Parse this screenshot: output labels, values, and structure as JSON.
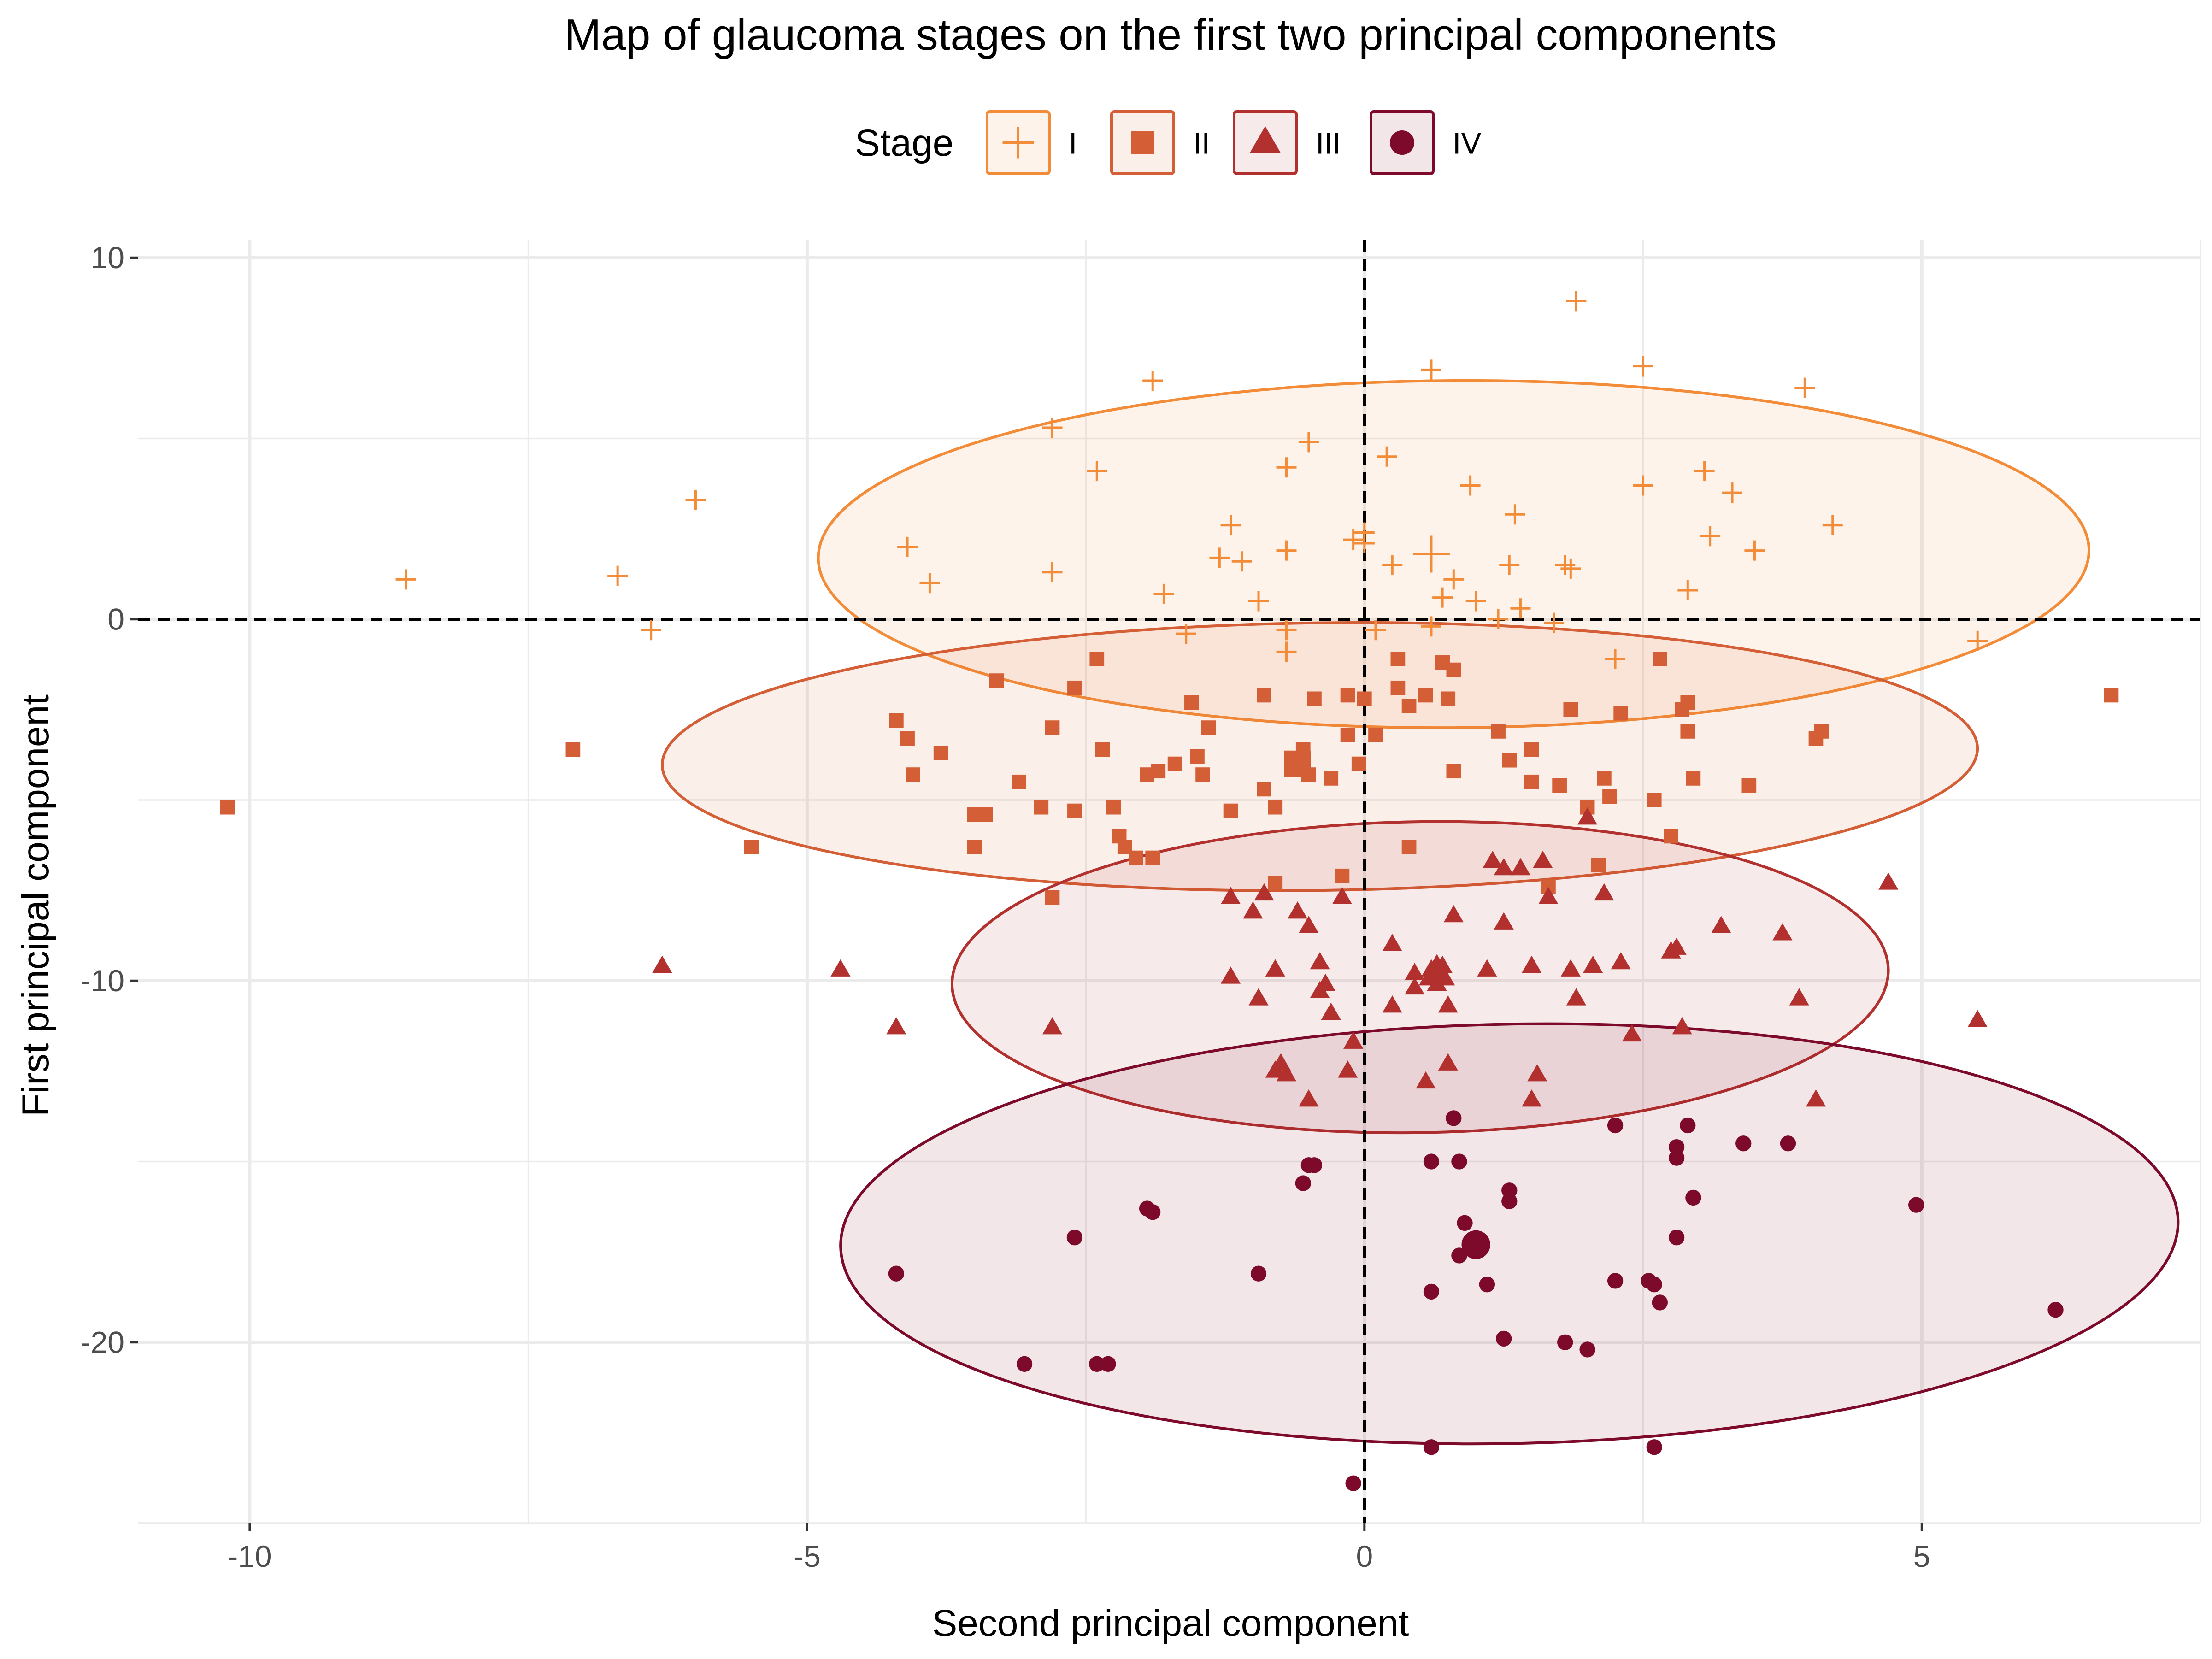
{
  "chart_data": {
    "type": "scatter",
    "title": "Map of glaucoma stages on the first two principal components",
    "xlabel": "Second principal component",
    "ylabel": "First principal component",
    "xlim": [
      -11,
      7.5
    ],
    "ylim": [
      -25,
      10.5
    ],
    "xticks": [
      -10,
      -5,
      0,
      5
    ],
    "yticks": [
      -20,
      -10,
      0,
      10
    ],
    "grid": true,
    "reference_lines": {
      "x": 0,
      "y": 0,
      "style": "dashed"
    },
    "legend": {
      "title": "Stage",
      "position": "top"
    },
    "series": [
      {
        "name": "I",
        "color": "#F28C38",
        "fill": "#FDEDE0",
        "shape": "cross",
        "centroid": [
          0.6,
          1.8
        ],
        "ellipse": {
          "cx": 0.8,
          "cy": 1.8,
          "rx": 5.7,
          "ry": 4.8,
          "rotation": 0.02
        },
        "points": [
          [
            -8.6,
            1.1
          ],
          [
            -6.7,
            1.2
          ],
          [
            -6.4,
            -0.3
          ],
          [
            -6.0,
            3.3
          ],
          [
            -4.1,
            2.0
          ],
          [
            -3.9,
            1.0
          ],
          [
            -2.8,
            5.3
          ],
          [
            -2.8,
            1.3
          ],
          [
            -2.4,
            4.1
          ],
          [
            -1.9,
            6.6
          ],
          [
            -1.8,
            0.7
          ],
          [
            -1.6,
            -0.4
          ],
          [
            -1.2,
            2.6
          ],
          [
            -1.3,
            1.7
          ],
          [
            -1.1,
            1.6
          ],
          [
            -0.95,
            0.5
          ],
          [
            -0.7,
            4.2
          ],
          [
            -0.7,
            1.9
          ],
          [
            -0.7,
            -0.3
          ],
          [
            -0.7,
            -0.9
          ],
          [
            -0.5,
            4.9
          ],
          [
            -0.1,
            2.2
          ],
          [
            0.0,
            2.4
          ],
          [
            0.0,
            2.1
          ],
          [
            0.1,
            -0.3
          ],
          [
            0.2,
            4.5
          ],
          [
            0.25,
            1.5
          ],
          [
            0.6,
            -0.2
          ],
          [
            0.6,
            6.9
          ],
          [
            0.7,
            0.6
          ],
          [
            0.8,
            1.1
          ],
          [
            0.95,
            3.7
          ],
          [
            1.0,
            0.5
          ],
          [
            1.2,
            0.0
          ],
          [
            1.3,
            1.5
          ],
          [
            1.35,
            2.9
          ],
          [
            1.4,
            0.3
          ],
          [
            1.7,
            -0.1
          ],
          [
            1.8,
            1.5
          ],
          [
            1.85,
            1.4
          ],
          [
            1.9,
            8.8
          ],
          [
            2.25,
            -1.1
          ],
          [
            2.5,
            3.7
          ],
          [
            2.5,
            7.0
          ],
          [
            2.9,
            0.8
          ],
          [
            3.05,
            4.1
          ],
          [
            3.1,
            2.3
          ],
          [
            3.3,
            3.5
          ],
          [
            3.5,
            1.9
          ],
          [
            3.95,
            6.4
          ],
          [
            4.2,
            2.6
          ],
          [
            5.5,
            -0.6
          ]
        ]
      },
      {
        "name": "II",
        "color": "#D45E35",
        "fill": "#F7E5DE",
        "shape": "square",
        "centroid": [
          -0.6,
          -4.0
        ],
        "ellipse": {
          "cx": -0.4,
          "cy": -3.8,
          "rx": 5.9,
          "ry": 3.7,
          "rotation": 0.04
        },
        "points": [
          [
            -10.2,
            -5.2
          ],
          [
            -7.1,
            -3.6
          ],
          [
            -5.5,
            -6.3
          ],
          [
            -4.2,
            -2.8
          ],
          [
            -4.1,
            -3.3
          ],
          [
            -4.05,
            -4.3
          ],
          [
            -3.8,
            -3.7
          ],
          [
            -3.5,
            -5.4
          ],
          [
            -3.5,
            -6.3
          ],
          [
            -3.4,
            -5.4
          ],
          [
            -3.3,
            -1.7
          ],
          [
            -3.1,
            -4.5
          ],
          [
            -2.9,
            -5.2
          ],
          [
            -2.8,
            -3.0
          ],
          [
            -2.8,
            -7.7
          ],
          [
            -2.6,
            -1.9
          ],
          [
            -2.6,
            -5.3
          ],
          [
            -2.4,
            -1.1
          ],
          [
            -2.35,
            -3.6
          ],
          [
            -2.25,
            -5.2
          ],
          [
            -2.2,
            -6.0
          ],
          [
            -2.15,
            -6.3
          ],
          [
            -2.05,
            -6.6
          ],
          [
            -1.95,
            -4.3
          ],
          [
            -1.9,
            -6.6
          ],
          [
            -1.85,
            -4.2
          ],
          [
            -1.7,
            -4.0
          ],
          [
            -1.55,
            -2.3
          ],
          [
            -1.5,
            -3.8
          ],
          [
            -1.45,
            -4.3
          ],
          [
            -1.4,
            -3.0
          ],
          [
            -1.2,
            -5.3
          ],
          [
            -0.9,
            -2.1
          ],
          [
            -0.9,
            -4.7
          ],
          [
            -0.8,
            -5.2
          ],
          [
            -0.8,
            -7.3
          ],
          [
            -0.55,
            -3.6
          ],
          [
            -0.55,
            -4.0
          ],
          [
            -0.5,
            -4.3
          ],
          [
            -0.45,
            -2.2
          ],
          [
            -0.3,
            -4.4
          ],
          [
            -0.2,
            -7.1
          ],
          [
            -0.15,
            -3.2
          ],
          [
            -0.15,
            -2.1
          ],
          [
            -0.05,
            -4.0
          ],
          [
            0.0,
            -2.2
          ],
          [
            0.1,
            -3.2
          ],
          [
            0.3,
            -1.1
          ],
          [
            0.3,
            -1.9
          ],
          [
            0.4,
            -2.4
          ],
          [
            0.4,
            -6.3
          ],
          [
            0.55,
            -2.1
          ],
          [
            0.7,
            -1.2
          ],
          [
            0.75,
            -2.2
          ],
          [
            0.8,
            -1.4
          ],
          [
            0.8,
            -4.2
          ],
          [
            1.2,
            -3.1
          ],
          [
            1.3,
            -3.9
          ],
          [
            1.5,
            -4.5
          ],
          [
            1.5,
            -3.6
          ],
          [
            1.65,
            -7.4
          ],
          [
            1.75,
            -4.6
          ],
          [
            1.85,
            -2.5
          ],
          [
            2.0,
            -5.2
          ],
          [
            2.1,
            -6.8
          ],
          [
            2.15,
            -4.4
          ],
          [
            2.2,
            -4.9
          ],
          [
            2.3,
            -2.6
          ],
          [
            2.65,
            -1.1
          ],
          [
            2.6,
            -5.0
          ],
          [
            2.75,
            -6.0
          ],
          [
            2.85,
            -2.5
          ],
          [
            2.9,
            -2.3
          ],
          [
            2.9,
            -3.1
          ],
          [
            2.95,
            -4.4
          ],
          [
            3.45,
            -4.6
          ],
          [
            4.05,
            -3.3
          ],
          [
            4.1,
            -3.1
          ],
          [
            6.7,
            -2.1
          ]
        ]
      },
      {
        "name": "III",
        "color": "#B2302E",
        "fill": "#F2E2E2",
        "shape": "triangle",
        "centroid": [
          0.65,
          -9.8
        ],
        "ellipse": {
          "cx": 0.5,
          "cy": -9.9,
          "rx": 4.2,
          "ry": 4.3,
          "rotation": 0.05
        },
        "points": [
          [
            -6.3,
            -9.6
          ],
          [
            -4.7,
            -9.7
          ],
          [
            -4.2,
            -11.3
          ],
          [
            -2.8,
            -11.3
          ],
          [
            -1.2,
            -7.7
          ],
          [
            -1.2,
            -9.9
          ],
          [
            -1.0,
            -8.1
          ],
          [
            -0.95,
            -10.5
          ],
          [
            -0.9,
            -7.6
          ],
          [
            -0.8,
            -9.7
          ],
          [
            -0.8,
            -12.5
          ],
          [
            -0.75,
            -12.3
          ],
          [
            -0.7,
            -12.6
          ],
          [
            -0.6,
            -8.1
          ],
          [
            -0.5,
            -13.3
          ],
          [
            -0.5,
            -8.5
          ],
          [
            -0.4,
            -10.3
          ],
          [
            -0.4,
            -9.5
          ],
          [
            -0.35,
            -10.1
          ],
          [
            -0.3,
            -10.9
          ],
          [
            -0.2,
            -7.7
          ],
          [
            -0.15,
            -12.5
          ],
          [
            -0.1,
            -11.7
          ],
          [
            0.25,
            -9.0
          ],
          [
            0.25,
            -10.7
          ],
          [
            0.45,
            -9.8
          ],
          [
            0.45,
            -10.2
          ],
          [
            0.55,
            -12.8
          ],
          [
            0.6,
            -9.7
          ],
          [
            0.65,
            -10.1
          ],
          [
            0.7,
            -9.6
          ],
          [
            0.7,
            -9.9
          ],
          [
            0.75,
            -10.7
          ],
          [
            0.75,
            -12.3
          ],
          [
            0.8,
            -8.2
          ],
          [
            1.1,
            -9.7
          ],
          [
            1.15,
            -6.7
          ],
          [
            1.25,
            -6.9
          ],
          [
            1.25,
            -8.4
          ],
          [
            1.4,
            -6.9
          ],
          [
            1.5,
            -9.6
          ],
          [
            1.5,
            -13.3
          ],
          [
            1.55,
            -12.6
          ],
          [
            1.6,
            -6.7
          ],
          [
            1.65,
            -7.7
          ],
          [
            1.85,
            -9.7
          ],
          [
            2.0,
            -5.5
          ],
          [
            2.05,
            -9.6
          ],
          [
            2.15,
            -7.6
          ],
          [
            2.3,
            -9.5
          ],
          [
            2.4,
            -11.5
          ],
          [
            2.75,
            -9.2
          ],
          [
            2.8,
            -9.1
          ],
          [
            2.85,
            -11.3
          ],
          [
            3.2,
            -8.5
          ],
          [
            3.75,
            -8.7
          ],
          [
            3.9,
            -10.5
          ],
          [
            4.05,
            -13.3
          ],
          [
            4.7,
            -7.3
          ],
          [
            5.5,
            -11.1
          ],
          [
            1.9,
            -10.5
          ]
        ]
      },
      {
        "name": "IV",
        "color": "#7D0A2A",
        "fill": "#EFE1E4",
        "shape": "circle",
        "centroid": [
          1.0,
          -17.3
        ],
        "ellipse": {
          "cx": 1.3,
          "cy": -17.0,
          "rx": 6.0,
          "ry": 5.8,
          "rotation": 0.06
        },
        "points": [
          [
            -4.2,
            -18.1
          ],
          [
            -3.05,
            -20.6
          ],
          [
            -2.6,
            -17.1
          ],
          [
            -2.4,
            -20.6
          ],
          [
            -2.3,
            -20.6
          ],
          [
            -1.95,
            -16.3
          ],
          [
            -1.9,
            -16.4
          ],
          [
            -0.95,
            -18.1
          ],
          [
            -0.55,
            -15.6
          ],
          [
            -0.5,
            -15.1
          ],
          [
            -0.45,
            -15.1
          ],
          [
            -0.1,
            -23.9
          ],
          [
            0.6,
            -15.0
          ],
          [
            0.6,
            -18.6
          ],
          [
            0.6,
            -22.9
          ],
          [
            0.8,
            -13.8
          ],
          [
            0.85,
            -17.6
          ],
          [
            0.85,
            -15.0
          ],
          [
            0.9,
            -16.7
          ],
          [
            1.05,
            -17.3
          ],
          [
            1.1,
            -18.4
          ],
          [
            1.25,
            -19.9
          ],
          [
            1.3,
            -15.8
          ],
          [
            1.3,
            -16.1
          ],
          [
            1.8,
            -20.0
          ],
          [
            2.0,
            -20.2
          ],
          [
            2.25,
            -14.0
          ],
          [
            2.25,
            -18.3
          ],
          [
            2.55,
            -18.3
          ],
          [
            2.6,
            -18.4
          ],
          [
            2.65,
            -18.9
          ],
          [
            2.6,
            -22.9
          ],
          [
            2.8,
            -14.6
          ],
          [
            2.8,
            -14.9
          ],
          [
            2.8,
            -17.1
          ],
          [
            2.9,
            -14.0
          ],
          [
            2.95,
            -16.0
          ],
          [
            3.4,
            -14.5
          ],
          [
            3.8,
            -14.5
          ],
          [
            4.95,
            -16.2
          ],
          [
            6.2,
            -19.1
          ]
        ]
      }
    ]
  }
}
